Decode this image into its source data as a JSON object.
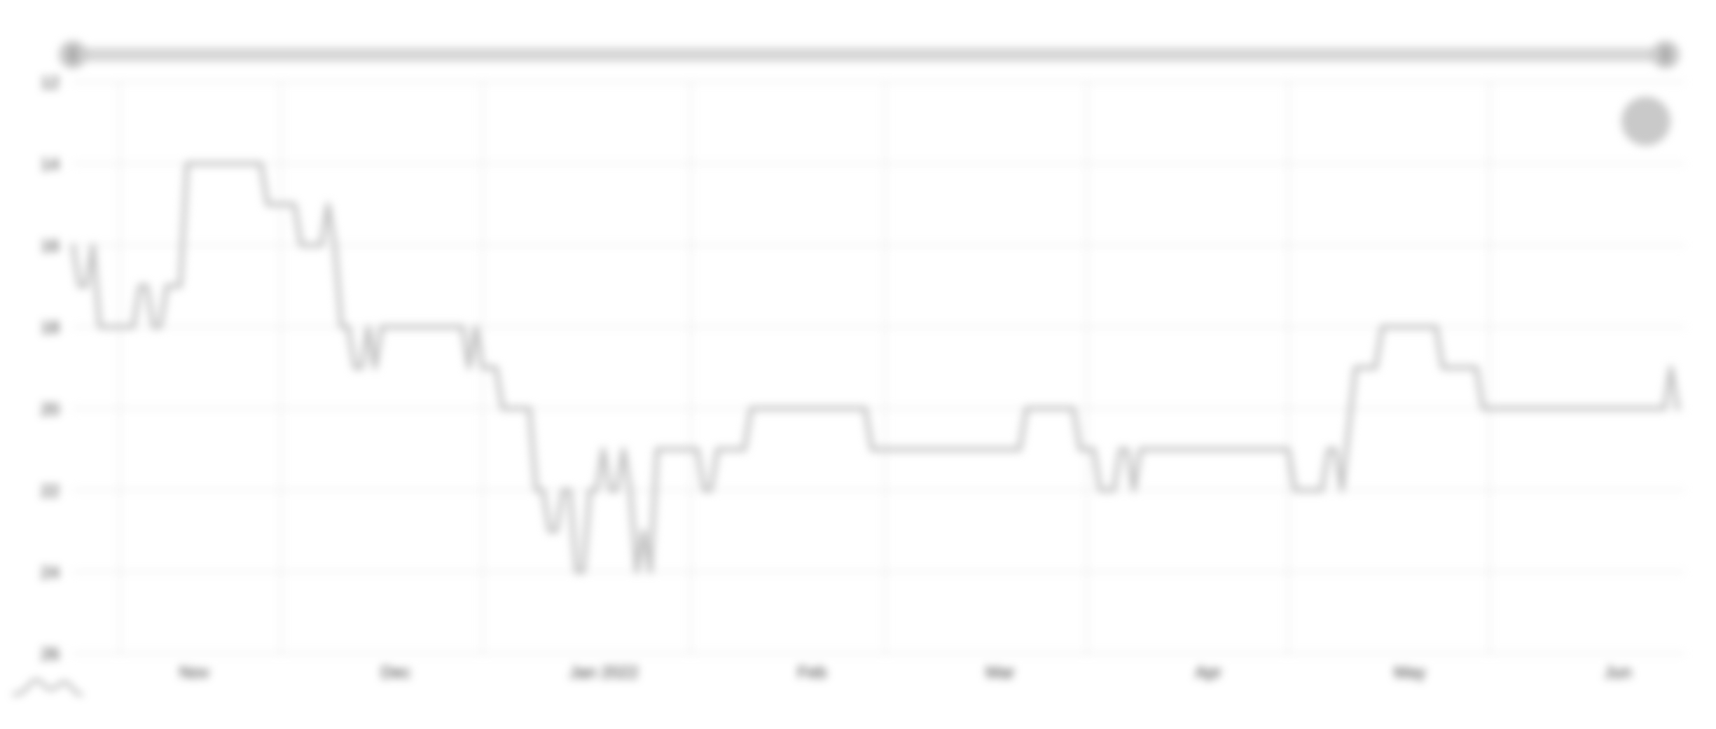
{
  "chart_data": {
    "type": "line",
    "title": "",
    "xlabel": "",
    "ylabel": "",
    "y_axis_reversed": true,
    "ylim": [
      12,
      26
    ],
    "y_ticks": [
      12,
      14,
      16,
      18,
      20,
      22,
      24,
      26
    ],
    "y_tick_labels": [
      "12",
      "14",
      "16",
      "18",
      "20",
      "22",
      "24",
      "26"
    ],
    "x_range": [
      "2021-10-16",
      "2022-06-13"
    ],
    "x_ticks": [
      {
        "date": "2021-11-01",
        "label": "Nov"
      },
      {
        "date": "2021-12-01",
        "label": "Dec"
      },
      {
        "date": "2022-01-01",
        "label": "Jan 2022"
      },
      {
        "date": "2022-02-01",
        "label": "Feb"
      },
      {
        "date": "2022-03-01",
        "label": "Mar"
      },
      {
        "date": "2022-04-01",
        "label": "Apr"
      },
      {
        "date": "2022-05-01",
        "label": "May"
      },
      {
        "date": "2022-06-01",
        "label": "Jun"
      }
    ],
    "grid": true,
    "series_color": "#bbbbbb",
    "series": [
      {
        "values": [
          [
            "2021-10-16",
            16
          ],
          [
            "2021-10-17",
            17
          ],
          [
            "2021-10-18",
            17
          ],
          [
            "2021-10-19",
            16
          ],
          [
            "2021-10-20",
            18
          ],
          [
            "2021-10-25",
            18
          ],
          [
            "2021-10-26",
            17
          ],
          [
            "2021-10-27",
            17
          ],
          [
            "2021-10-28",
            18
          ],
          [
            "2021-10-29",
            18
          ],
          [
            "2021-10-30",
            17
          ],
          [
            "2021-11-01",
            17
          ],
          [
            "2021-11-02",
            14
          ],
          [
            "2021-11-13",
            14
          ],
          [
            "2021-11-14",
            15
          ],
          [
            "2021-11-18",
            15
          ],
          [
            "2021-11-19",
            16
          ],
          [
            "2021-11-22",
            16
          ],
          [
            "2021-11-23",
            15
          ],
          [
            "2021-11-24",
            16
          ],
          [
            "2021-11-25",
            18
          ],
          [
            "2021-11-26",
            18
          ],
          [
            "2021-11-27",
            19
          ],
          [
            "2021-11-28",
            19
          ],
          [
            "2021-11-29",
            18
          ],
          [
            "2021-11-30",
            19
          ],
          [
            "2021-12-01",
            18
          ],
          [
            "2021-12-13",
            18
          ],
          [
            "2021-12-14",
            19
          ],
          [
            "2021-12-15",
            18
          ],
          [
            "2021-12-16",
            19
          ],
          [
            "2021-12-18",
            19
          ],
          [
            "2021-12-19",
            20
          ],
          [
            "2021-12-23",
            20
          ],
          [
            "2021-12-24",
            22
          ],
          [
            "2021-12-25",
            22
          ],
          [
            "2021-12-26",
            23
          ],
          [
            "2021-12-27",
            23
          ],
          [
            "2021-12-28",
            22
          ],
          [
            "2021-12-29",
            22
          ],
          [
            "2021-12-30",
            24
          ],
          [
            "2021-12-31",
            24
          ],
          [
            "2022-01-01",
            22
          ],
          [
            "2022-01-02",
            22
          ],
          [
            "2022-01-03",
            21
          ],
          [
            "2022-01-04",
            22
          ],
          [
            "2022-01-05",
            22
          ],
          [
            "2022-01-06",
            21
          ],
          [
            "2022-01-07",
            22
          ],
          [
            "2022-01-08",
            24
          ],
          [
            "2022-01-09",
            23
          ],
          [
            "2022-01-10",
            24
          ],
          [
            "2022-01-11",
            21
          ],
          [
            "2022-01-17",
            21
          ],
          [
            "2022-01-18",
            22
          ],
          [
            "2022-01-19",
            22
          ],
          [
            "2022-01-20",
            21
          ],
          [
            "2022-01-24",
            21
          ],
          [
            "2022-01-25",
            20
          ],
          [
            "2022-02-11",
            20
          ],
          [
            "2022-02-12",
            21
          ],
          [
            "2022-03-06",
            21
          ],
          [
            "2022-03-07",
            20
          ],
          [
            "2022-03-14",
            20
          ],
          [
            "2022-03-15",
            21
          ],
          [
            "2022-03-17",
            21
          ],
          [
            "2022-03-18",
            22
          ],
          [
            "2022-03-20",
            22
          ],
          [
            "2022-03-21",
            21
          ],
          [
            "2022-03-22",
            21
          ],
          [
            "2022-03-23",
            22
          ],
          [
            "2022-03-24",
            21
          ],
          [
            "2022-04-15",
            21
          ],
          [
            "2022-04-16",
            22
          ],
          [
            "2022-04-20",
            22
          ],
          [
            "2022-04-21",
            21
          ],
          [
            "2022-04-22",
            21
          ],
          [
            "2022-04-23",
            22
          ],
          [
            "2022-04-25",
            19
          ],
          [
            "2022-04-28",
            19
          ],
          [
            "2022-04-29",
            18
          ],
          [
            "2022-05-07",
            18
          ],
          [
            "2022-05-08",
            19
          ],
          [
            "2022-05-13",
            19
          ],
          [
            "2022-05-14",
            20
          ],
          [
            "2022-06-10",
            20
          ],
          [
            "2022-06-11",
            19
          ],
          [
            "2022-06-12",
            20
          ]
        ]
      }
    ]
  }
}
